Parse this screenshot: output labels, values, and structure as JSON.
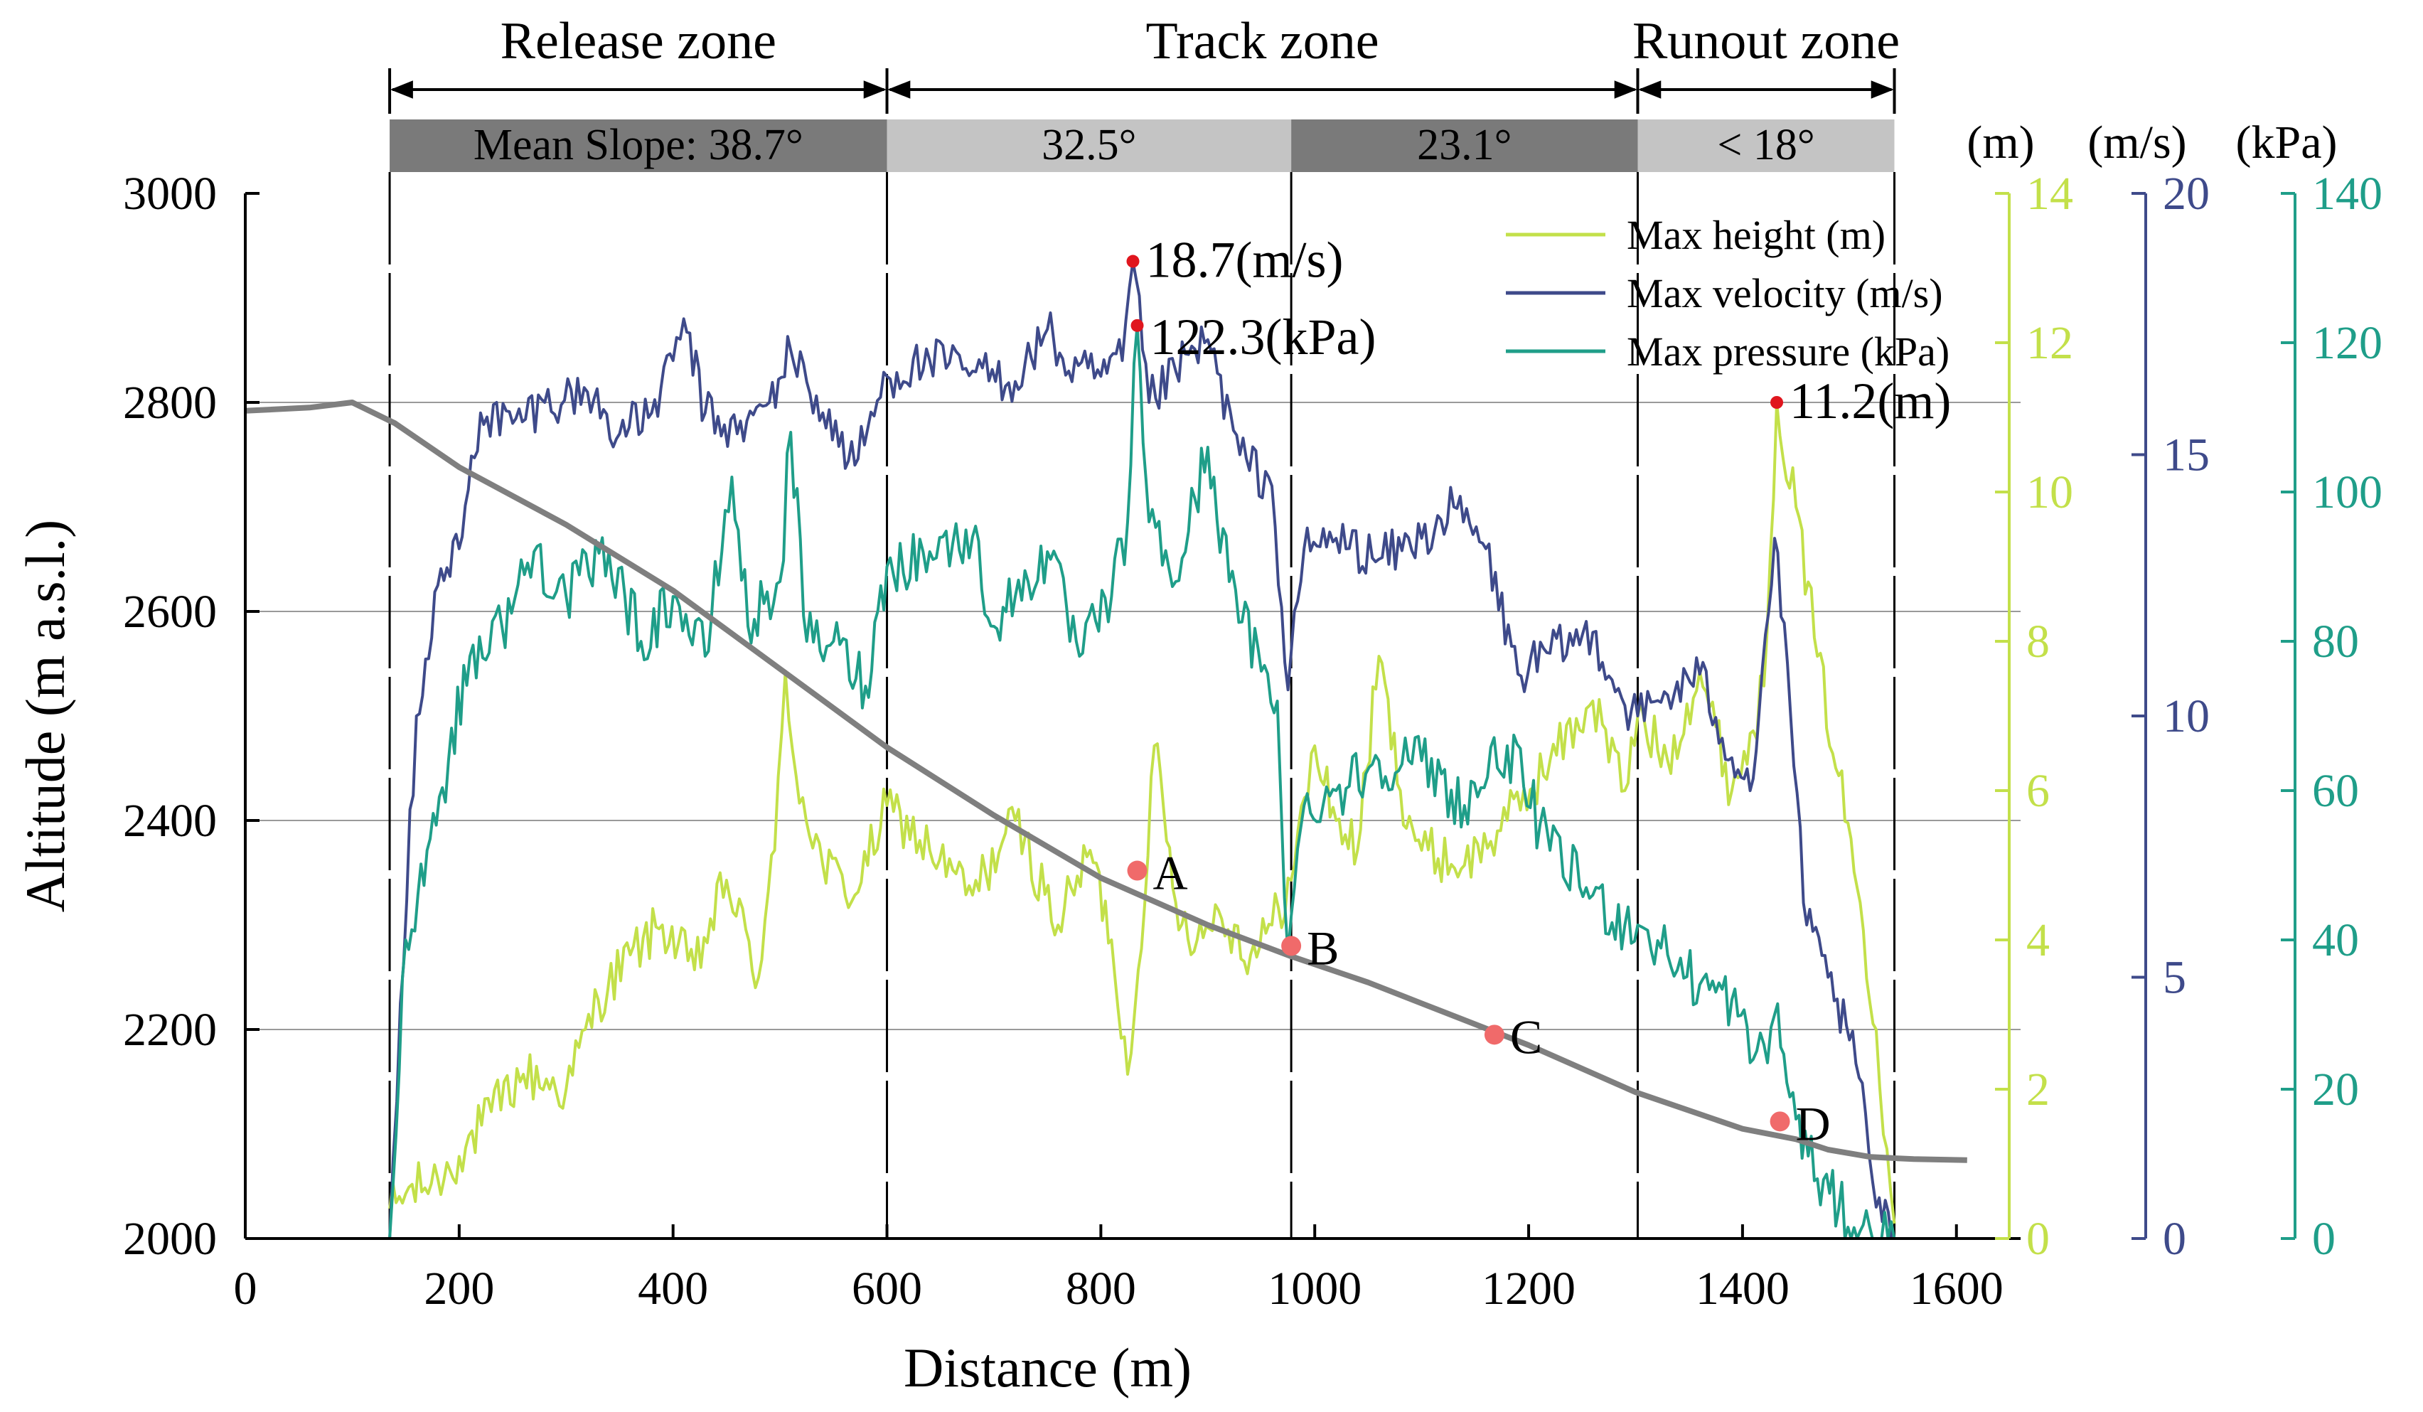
{
  "chart_data": {
    "type": "line",
    "title": "",
    "xlabel": "Distance (m)",
    "ylabel": "Altitude (m a.s.l.)",
    "xlim": [
      0,
      1660
    ],
    "ylim": [
      2000,
      3000
    ],
    "x_ticks": [
      0,
      200,
      400,
      600,
      800,
      1000,
      1200,
      1400,
      1600
    ],
    "y_ticks": [
      2000,
      2200,
      2400,
      2600,
      2800,
      3000
    ],
    "grid": "horizontal",
    "right_axes": [
      {
        "unit": "(m)",
        "name": "height",
        "ylim": [
          0,
          14
        ],
        "ticks": [
          0,
          2,
          4,
          6,
          8,
          10,
          12,
          14
        ],
        "color": "#c3e04a"
      },
      {
        "unit": "(m/s)",
        "name": "velocity",
        "ylim": [
          0,
          20
        ],
        "ticks": [
          0,
          5,
          10,
          15,
          20
        ],
        "color": "#3e4a8a"
      },
      {
        "unit": "(kPa)",
        "name": "pressure",
        "ylim": [
          0,
          140
        ],
        "ticks": [
          0,
          20,
          40,
          60,
          80,
          100,
          120,
          140
        ],
        "color": "#1f9e89"
      }
    ],
    "zones": [
      {
        "label": "Release zone",
        "x_start": 135,
        "x_end": 600
      },
      {
        "label": "Track zone",
        "x_start": 600,
        "x_end": 1302
      },
      {
        "label": "Runout zone",
        "x_start": 1302,
        "x_end": 1542
      }
    ],
    "slope_bands": [
      {
        "label": "Mean Slope: 38.7°",
        "x_start": 135,
        "x_end": 600,
        "shade": "#7a7a7a"
      },
      {
        "label": "32.5°",
        "x_start": 600,
        "x_end": 978,
        "shade": "#c4c4c4"
      },
      {
        "label": "23.1°",
        "x_start": 978,
        "x_end": 1302,
        "shade": "#7a7a7a"
      },
      {
        "label": "< 18°",
        "x_start": 1302,
        "x_end": 1542,
        "shade": "#c4c4c4"
      }
    ],
    "divider_x": [
      135,
      600,
      978,
      1302,
      1542
    ],
    "terrain": {
      "name": "Terrain profile",
      "color": "#7f7f7f",
      "points": [
        [
          0,
          2792
        ],
        [
          60,
          2795
        ],
        [
          100,
          2800
        ],
        [
          140,
          2780
        ],
        [
          200,
          2738
        ],
        [
          300,
          2683
        ],
        [
          400,
          2620
        ],
        [
          500,
          2545
        ],
        [
          600,
          2470
        ],
        [
          700,
          2405
        ],
        [
          800,
          2345
        ],
        [
          900,
          2300
        ],
        [
          978,
          2270
        ],
        [
          1050,
          2245
        ],
        [
          1100,
          2225
        ],
        [
          1200,
          2185
        ],
        [
          1300,
          2140
        ],
        [
          1400,
          2105
        ],
        [
          1450,
          2095
        ],
        [
          1480,
          2085
        ],
        [
          1520,
          2078
        ],
        [
          1560,
          2076
        ],
        [
          1610,
          2075
        ]
      ]
    },
    "series": [
      {
        "name": "Max height (m)",
        "axis": "height",
        "color": "#c3e04a",
        "points": [
          [
            135,
            0.4
          ],
          [
            150,
            0.6
          ],
          [
            180,
            0.8
          ],
          [
            200,
            1.1
          ],
          [
            230,
            1.7
          ],
          [
            260,
            2.2
          ],
          [
            300,
            2.0
          ],
          [
            330,
            3.2
          ],
          [
            360,
            3.8
          ],
          [
            390,
            4.2
          ],
          [
            420,
            3.6
          ],
          [
            450,
            4.8
          ],
          [
            480,
            3.5
          ],
          [
            495,
            5.2
          ],
          [
            505,
            7.6
          ],
          [
            515,
            6.2
          ],
          [
            540,
            5.0
          ],
          [
            570,
            4.6
          ],
          [
            600,
            5.8
          ],
          [
            640,
            5.2
          ],
          [
            680,
            4.6
          ],
          [
            720,
            5.6
          ],
          [
            760,
            4.2
          ],
          [
            790,
            5.2
          ],
          [
            810,
            4.0
          ],
          [
            825,
            2.2
          ],
          [
            835,
            3.6
          ],
          [
            850,
            6.6
          ],
          [
            870,
            4.5
          ],
          [
            890,
            4.0
          ],
          [
            910,
            4.4
          ],
          [
            940,
            3.8
          ],
          [
            960,
            4.2
          ],
          [
            978,
            4.8
          ],
          [
            1000,
            6.6
          ],
          [
            1020,
            5.6
          ],
          [
            1040,
            5.2
          ],
          [
            1060,
            7.8
          ],
          [
            1080,
            6.0
          ],
          [
            1100,
            5.2
          ],
          [
            1140,
            5.0
          ],
          [
            1180,
            5.6
          ],
          [
            1220,
            6.4
          ],
          [
            1260,
            7.2
          ],
          [
            1290,
            6.0
          ],
          [
            1302,
            7.0
          ],
          [
            1330,
            6.4
          ],
          [
            1360,
            7.6
          ],
          [
            1390,
            6.0
          ],
          [
            1410,
            6.8
          ],
          [
            1420,
            7.4
          ],
          [
            1432,
            11.2
          ],
          [
            1450,
            9.8
          ],
          [
            1470,
            7.8
          ],
          [
            1490,
            6.2
          ],
          [
            1510,
            4.5
          ],
          [
            1525,
            2.8
          ],
          [
            1535,
            1.2
          ],
          [
            1542,
            0.2
          ]
        ]
      },
      {
        "name": "Max velocity (m/s)",
        "axis": "velocity",
        "color": "#3e4a8a",
        "points": [
          [
            135,
            0.0
          ],
          [
            145,
            4.5
          ],
          [
            160,
            10.0
          ],
          [
            180,
            12.5
          ],
          [
            200,
            13.2
          ],
          [
            220,
            15.8
          ],
          [
            250,
            15.6
          ],
          [
            280,
            16.0
          ],
          [
            320,
            16.2
          ],
          [
            350,
            15.4
          ],
          [
            380,
            15.8
          ],
          [
            400,
            16.8
          ],
          [
            410,
            17.6
          ],
          [
            430,
            15.8
          ],
          [
            460,
            15.4
          ],
          [
            490,
            16.0
          ],
          [
            510,
            17.0
          ],
          [
            540,
            15.8
          ],
          [
            570,
            14.8
          ],
          [
            600,
            16.5
          ],
          [
            640,
            16.8
          ],
          [
            680,
            16.6
          ],
          [
            720,
            16.4
          ],
          [
            750,
            17.4
          ],
          [
            770,
            16.6
          ],
          [
            800,
            16.5
          ],
          [
            820,
            16.8
          ],
          [
            830,
            18.7
          ],
          [
            845,
            16.0
          ],
          [
            870,
            16.6
          ],
          [
            900,
            17.2
          ],
          [
            930,
            15.0
          ],
          [
            960,
            14.4
          ],
          [
            975,
            10.5
          ],
          [
            990,
            13.2
          ],
          [
            1020,
            13.4
          ],
          [
            1060,
            13.0
          ],
          [
            1100,
            13.4
          ],
          [
            1130,
            14.0
          ],
          [
            1160,
            13.2
          ],
          [
            1190,
            10.8
          ],
          [
            1220,
            11.2
          ],
          [
            1260,
            11.6
          ],
          [
            1290,
            10.2
          ],
          [
            1302,
            10.0
          ],
          [
            1330,
            10.4
          ],
          [
            1360,
            10.8
          ],
          [
            1390,
            9.2
          ],
          [
            1410,
            8.8
          ],
          [
            1430,
            13.4
          ],
          [
            1445,
            10.0
          ],
          [
            1460,
            6.0
          ],
          [
            1480,
            5.0
          ],
          [
            1500,
            3.8
          ],
          [
            1515,
            2.4
          ],
          [
            1525,
            0.6
          ],
          [
            1542,
            0.0
          ]
        ]
      },
      {
        "name": "Max pressure (kPa)",
        "axis": "pressure",
        "color": "#1f9e89",
        "points": [
          [
            135,
            0.0
          ],
          [
            150,
            40.0
          ],
          [
            170,
            52.0
          ],
          [
            190,
            64.0
          ],
          [
            210,
            78.0
          ],
          [
            240,
            82.0
          ],
          [
            270,
            92.0
          ],
          [
            300,
            86.0
          ],
          [
            340,
            92.0
          ],
          [
            370,
            80.0
          ],
          [
            400,
            86.0
          ],
          [
            430,
            78.0
          ],
          [
            455,
            102.0
          ],
          [
            470,
            82.0
          ],
          [
            500,
            88.0
          ],
          [
            510,
            108.0
          ],
          [
            525,
            80.0
          ],
          [
            550,
            80.0
          ],
          [
            580,
            74.0
          ],
          [
            600,
            90.0
          ],
          [
            640,
            92.0
          ],
          [
            680,
            94.0
          ],
          [
            700,
            82.0
          ],
          [
            720,
            86.0
          ],
          [
            750,
            92.0
          ],
          [
            780,
            78.0
          ],
          [
            810,
            86.0
          ],
          [
            825,
            96.0
          ],
          [
            834,
            122.3
          ],
          [
            845,
            96.0
          ],
          [
            870,
            88.0
          ],
          [
            900,
            106.0
          ],
          [
            920,
            88.0
          ],
          [
            950,
            76.0
          ],
          [
            965,
            72.0
          ],
          [
            975,
            38.0
          ],
          [
            990,
            58.0
          ],
          [
            1020,
            60.0
          ],
          [
            1060,
            64.0
          ],
          [
            1100,
            64.0
          ],
          [
            1140,
            58.0
          ],
          [
            1180,
            66.0
          ],
          [
            1220,
            52.0
          ],
          [
            1260,
            46.0
          ],
          [
            1290,
            42.0
          ],
          [
            1302,
            42.0
          ],
          [
            1330,
            38.0
          ],
          [
            1360,
            34.0
          ],
          [
            1390,
            32.0
          ],
          [
            1410,
            24.0
          ],
          [
            1420,
            26.0
          ],
          [
            1430,
            30.0
          ],
          [
            1450,
            16.0
          ],
          [
            1470,
            8.0
          ],
          [
            1490,
            4.0
          ],
          [
            1510,
            1.0
          ],
          [
            1530,
            0.0
          ],
          [
            1542,
            0.0
          ]
        ]
      }
    ],
    "peak_annotations": [
      {
        "text": "18.7(m/s)",
        "x": 830,
        "value": 18.7,
        "axis": "velocity"
      },
      {
        "text": "122.3(kPa)",
        "x": 834,
        "value": 122.3,
        "axis": "pressure"
      },
      {
        "text": "11.2(m)",
        "x": 1432,
        "value": 11.2,
        "axis": "height"
      }
    ],
    "points": [
      {
        "label": "A",
        "x": 834,
        "y": 2352
      },
      {
        "label": "B",
        "x": 978,
        "y": 2280
      },
      {
        "label": "C",
        "x": 1168,
        "y": 2195
      },
      {
        "label": "D",
        "x": 1435,
        "y": 2112
      }
    ],
    "legend": {
      "position": "top-right"
    }
  }
}
